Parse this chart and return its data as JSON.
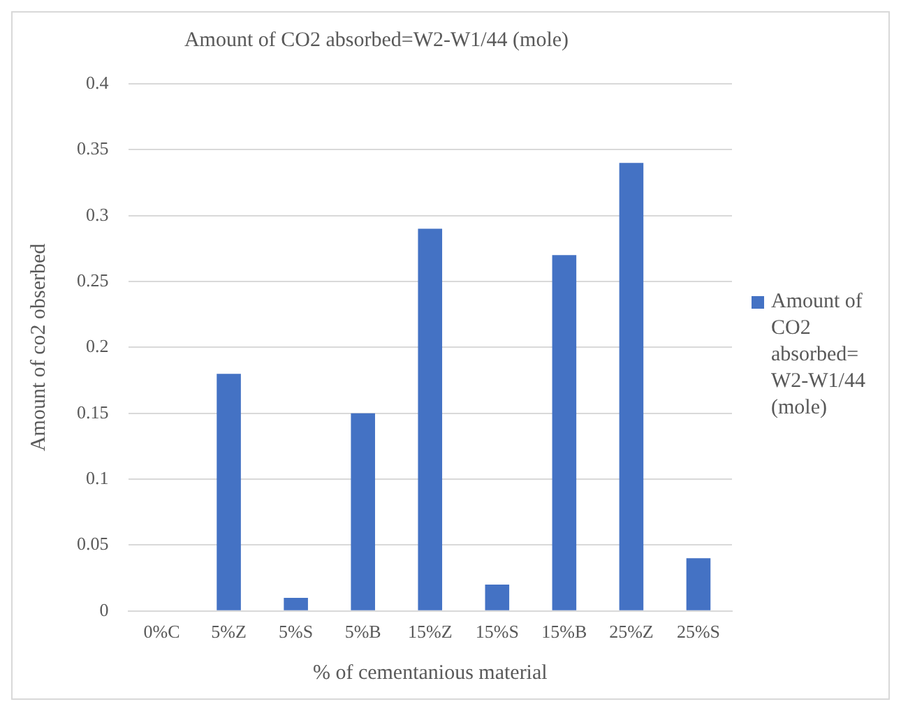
{
  "chart_data": {
    "type": "bar",
    "title": "Amount of CO2 absorbed=W2-W1/44 (mole)",
    "xlabel": "% of cementanious material",
    "ylabel": "Amount of co2 obserbed",
    "categories": [
      "0%C",
      "5%Z",
      "5%S",
      "5%B",
      "15%Z",
      "15%S",
      "15%B",
      "25%Z",
      "25%S"
    ],
    "series": [
      {
        "name": "Amount of CO2 absorbed= W2-W1/44 (mole)",
        "color": "#4472c4",
        "values": [
          0,
          0.18,
          0.01,
          0.15,
          0.29,
          0.02,
          0.27,
          0.34,
          0.04
        ]
      }
    ],
    "ylim": [
      0,
      0.4
    ],
    "yticks": [
      0,
      0.05,
      0.1,
      0.15,
      0.2,
      0.25,
      0.3,
      0.35,
      0.4
    ],
    "grid": "y",
    "legend": "right"
  }
}
